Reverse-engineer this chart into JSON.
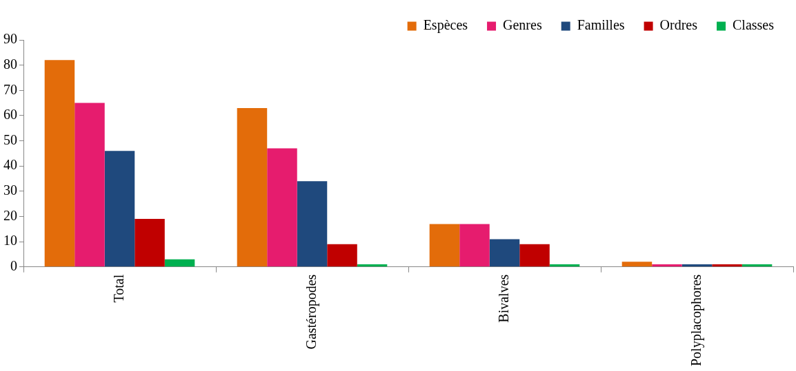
{
  "chart_data": {
    "type": "bar",
    "categories": [
      "Total",
      "Gastéropodes",
      "Bivalves",
      "Polyplacophores"
    ],
    "series": [
      {
        "name": "Espèces",
        "color": "#e36c0a",
        "values": [
          82,
          63,
          17,
          2
        ]
      },
      {
        "name": "Genres",
        "color": "#e61c6e",
        "values": [
          65,
          47,
          17,
          1
        ]
      },
      {
        "name": "Familles",
        "color": "#1f497d",
        "values": [
          46,
          34,
          11,
          1
        ]
      },
      {
        "name": "Ordres",
        "color": "#c00000",
        "values": [
          19,
          9,
          9,
          1
        ]
      },
      {
        "name": "Classes",
        "color": "#00b050",
        "values": [
          3,
          1,
          1,
          1
        ]
      }
    ],
    "ylim": [
      0,
      90
    ],
    "yticks": [
      0,
      10,
      20,
      30,
      40,
      50,
      60,
      70,
      80,
      90
    ],
    "grid": false,
    "legend": "top right"
  }
}
